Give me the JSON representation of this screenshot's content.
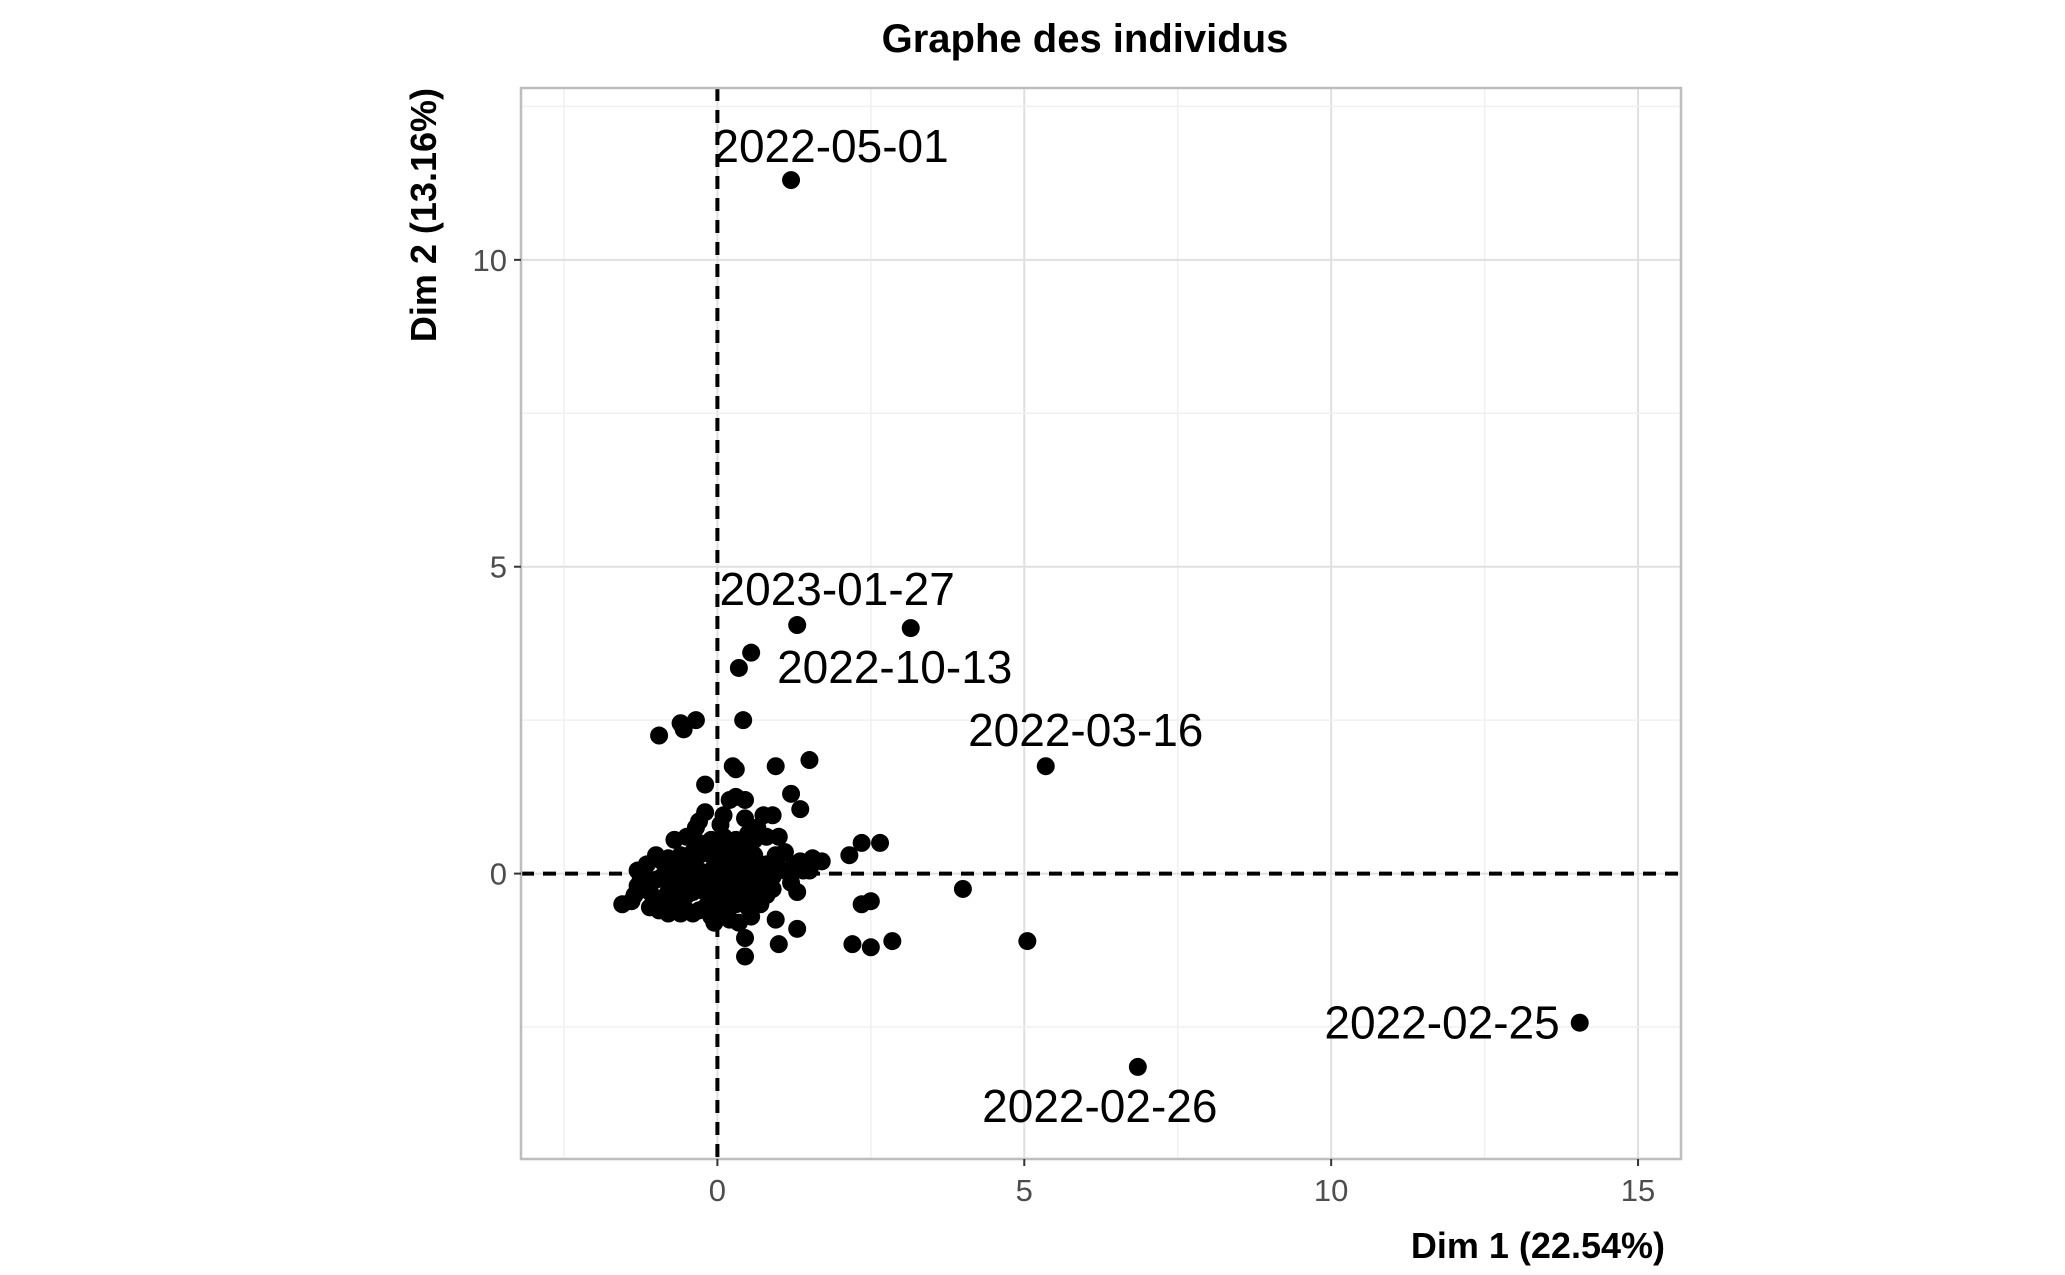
{
  "chart_data": {
    "type": "scatter",
    "title": "Graphe des individus",
    "xlabel": "Dim 1 (22.54%)",
    "ylabel": "Dim 2 (13.16%)",
    "xlim": [
      -3.2,
      15.7
    ],
    "ylim": [
      -4.65,
      12.8
    ],
    "x_ticks": [
      0,
      5,
      10,
      15
    ],
    "y_ticks": [
      0,
      5,
      10
    ],
    "grid": true,
    "reference_lines": {
      "x": 0,
      "y": 0,
      "style": "dashed"
    },
    "point_color": "#000000",
    "labeled_points": [
      {
        "label": "2022-05-01",
        "x": 1.2,
        "y": 11.3
      },
      {
        "label": "2023-01-27",
        "x": 1.3,
        "y": 4.05
      },
      {
        "label": "2022-10-13",
        "x": 3.15,
        "y": 4.0
      },
      {
        "label": "2022-03-16",
        "x": 5.35,
        "y": 1.75
      },
      {
        "label": "2022-02-25",
        "x": 14.05,
        "y": -2.43
      },
      {
        "label": "2022-02-26",
        "x": 6.85,
        "y": -3.15
      }
    ],
    "points": [
      [
        0.55,
        3.6
      ],
      [
        0.35,
        3.35
      ],
      [
        -0.95,
        2.25
      ],
      [
        -0.6,
        2.45
      ],
      [
        -0.55,
        2.35
      ],
      [
        -0.35,
        2.5
      ],
      [
        0.42,
        2.5
      ],
      [
        0.25,
        1.75
      ],
      [
        0.3,
        1.7
      ],
      [
        0.95,
        1.75
      ],
      [
        1.5,
        1.85
      ],
      [
        -0.2,
        1.45
      ],
      [
        0.3,
        1.25
      ],
      [
        0.45,
        1.2
      ],
      [
        0.2,
        1.2
      ],
      [
        1.2,
        1.3
      ],
      [
        1.35,
        1.05
      ],
      [
        -0.2,
        1.0
      ],
      [
        -0.3,
        0.85
      ],
      [
        0.45,
        0.9
      ],
      [
        0.9,
        0.95
      ],
      [
        0.75,
        0.95
      ],
      [
        0.1,
        0.95
      ],
      [
        2.35,
        0.5
      ],
      [
        2.65,
        0.5
      ],
      [
        2.15,
        0.3
      ],
      [
        1.55,
        0.25
      ],
      [
        1.7,
        0.2
      ],
      [
        1.35,
        0.2
      ],
      [
        1.4,
        0.05
      ],
      [
        1.0,
        0.6
      ],
      [
        0.8,
        0.6
      ],
      [
        0.6,
        0.55
      ],
      [
        1.1,
        0.35
      ],
      [
        0.95,
        0.3
      ],
      [
        4.0,
        -0.25
      ],
      [
        2.5,
        -0.45
      ],
      [
        2.35,
        -0.5
      ],
      [
        5.05,
        -1.1
      ],
      [
        2.85,
        -1.1
      ],
      [
        2.5,
        -1.2
      ],
      [
        2.2,
        -1.15
      ],
      [
        1.3,
        -0.9
      ],
      [
        0.45,
        -1.05
      ],
      [
        0.45,
        -1.35
      ],
      [
        1.0,
        -1.15
      ],
      [
        0.95,
        -0.75
      ],
      [
        0.55,
        -0.7
      ],
      [
        -0.1,
        -0.7
      ],
      [
        -1.55,
        -0.5
      ],
      [
        -1.4,
        -0.45
      ],
      [
        -1.35,
        -0.35
      ],
      [
        -1.3,
        -0.2
      ],
      [
        -1.2,
        -0.25
      ],
      [
        -1.15,
        0.15
      ],
      [
        -1.0,
        0.3
      ],
      [
        -1.1,
        -0.55
      ],
      [
        -0.95,
        -0.6
      ],
      [
        -0.8,
        -0.65
      ],
      [
        -0.7,
        -0.55
      ],
      [
        -0.6,
        -0.65
      ],
      [
        -0.5,
        -0.6
      ],
      [
        -0.4,
        -0.65
      ],
      [
        -0.3,
        -0.6
      ],
      [
        -0.2,
        -0.55
      ],
      [
        -0.1,
        -0.45
      ],
      [
        0.0,
        -0.5
      ],
      [
        0.1,
        -0.6
      ],
      [
        0.2,
        -0.55
      ],
      [
        0.3,
        -0.5
      ],
      [
        0.4,
        -0.45
      ],
      [
        0.5,
        -0.55
      ],
      [
        0.6,
        -0.4
      ],
      [
        0.7,
        -0.5
      ],
      [
        0.8,
        -0.35
      ],
      [
        0.9,
        -0.25
      ],
      [
        -0.9,
        -0.4
      ],
      [
        -0.8,
        -0.3
      ],
      [
        -0.7,
        -0.35
      ],
      [
        -0.6,
        -0.25
      ],
      [
        -0.5,
        -0.35
      ],
      [
        -0.4,
        -0.3
      ],
      [
        -0.3,
        -0.2
      ],
      [
        -0.2,
        -0.3
      ],
      [
        -0.1,
        -0.25
      ],
      [
        0.0,
        -0.2
      ],
      [
        0.1,
        -0.3
      ],
      [
        0.2,
        -0.25
      ],
      [
        0.3,
        -0.15
      ],
      [
        0.4,
        -0.2
      ],
      [
        0.5,
        -0.25
      ],
      [
        0.6,
        -0.15
      ],
      [
        0.7,
        -0.2
      ],
      [
        0.8,
        -0.1
      ],
      [
        0.9,
        -0.05
      ],
      [
        -1.0,
        -0.1
      ],
      [
        -0.9,
        -0.05
      ],
      [
        -0.8,
        -0.1
      ],
      [
        -0.7,
        0.0
      ],
      [
        -0.6,
        -0.05
      ],
      [
        -0.5,
        0.05
      ],
      [
        -0.4,
        -0.05
      ],
      [
        -0.3,
        0.05
      ],
      [
        -0.2,
        0.0
      ],
      [
        -0.1,
        0.05
      ],
      [
        0.0,
        0.1
      ],
      [
        0.1,
        0.0
      ],
      [
        0.2,
        0.05
      ],
      [
        0.3,
        0.1
      ],
      [
        0.4,
        0.0
      ],
      [
        0.5,
        0.05
      ],
      [
        0.6,
        0.1
      ],
      [
        0.7,
        0.05
      ],
      [
        0.8,
        0.15
      ],
      [
        1.0,
        0.1
      ],
      [
        1.1,
        0.05
      ],
      [
        -0.9,
        0.2
      ],
      [
        -0.8,
        0.25
      ],
      [
        -0.7,
        0.2
      ],
      [
        -0.6,
        0.3
      ],
      [
        -0.5,
        0.25
      ],
      [
        -0.4,
        0.35
      ],
      [
        -0.3,
        0.3
      ],
      [
        -0.2,
        0.4
      ],
      [
        -0.1,
        0.3
      ],
      [
        0.0,
        0.35
      ],
      [
        0.1,
        0.25
      ],
      [
        0.2,
        0.4
      ],
      [
        0.3,
        0.35
      ],
      [
        0.4,
        0.3
      ],
      [
        0.5,
        0.4
      ],
      [
        0.6,
        0.3
      ],
      [
        -0.7,
        0.55
      ],
      [
        -0.5,
        0.6
      ],
      [
        -0.3,
        0.5
      ],
      [
        -0.1,
        0.55
      ],
      [
        0.1,
        0.6
      ],
      [
        0.3,
        0.55
      ],
      [
        0.5,
        0.65
      ],
      [
        -1.2,
        0.0
      ],
      [
        -1.3,
        0.05
      ],
      [
        -1.1,
        -0.3
      ],
      [
        -1.25,
        -0.1
      ],
      [
        -0.05,
        -0.8
      ],
      [
        0.2,
        -0.75
      ],
      [
        0.35,
        -0.8
      ],
      [
        1.2,
        -0.15
      ],
      [
        1.3,
        -0.3
      ],
      [
        1.5,
        0.05
      ],
      [
        1.25,
        0.15
      ],
      [
        -0.35,
        0.75
      ],
      [
        0.05,
        0.8
      ],
      [
        0.65,
        0.75
      ]
    ]
  }
}
